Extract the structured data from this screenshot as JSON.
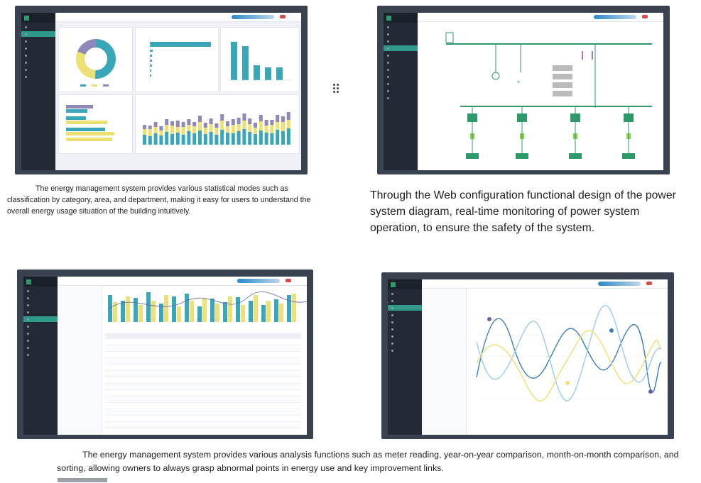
{
  "captions": {
    "top_left": "The energy management system provides various statistical modes such as classification by category, area, and department, making it easy for users to understand the overall energy usage situation of the building intuitively.",
    "top_right": "Through the Web configuration functional design of the power system diagram, real-time monitoring of power system operation, to ensure the safety of the system.",
    "bottom": "The energy management system provides various analysis functions such as meter reading, year-on-year comparison, month-on-month comparison, and sorting, allowing owners to always grasp abnormal points in energy use and key improvement links."
  },
  "colors": {
    "frame": "#3a4250",
    "sidebar": "#232a35",
    "teal": "#3aa7b8",
    "yellow": "#ece172",
    "purple": "#8f88b8",
    "green": "#2e9a6b"
  },
  "icons": [
    "grid-icon",
    "bell-icon",
    "user-icon",
    "drag-handle-icon"
  ]
}
